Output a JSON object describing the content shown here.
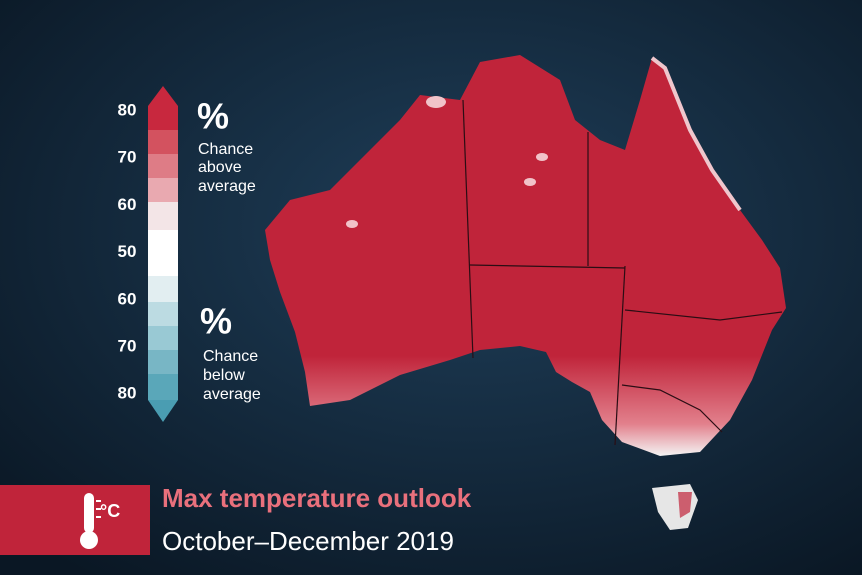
{
  "legend": {
    "ticks": [
      80,
      70,
      60,
      50,
      60,
      70,
      80
    ],
    "above": {
      "symbol": "%",
      "lines": [
        "Chance",
        "above",
        "average"
      ]
    },
    "below": {
      "symbol": "%",
      "lines": [
        "Chance",
        "below",
        "average"
      ]
    }
  },
  "banner": {
    "icon_unit": "°C",
    "title": "Max temperature outlook",
    "subtitle": "October–December 2019"
  }
}
